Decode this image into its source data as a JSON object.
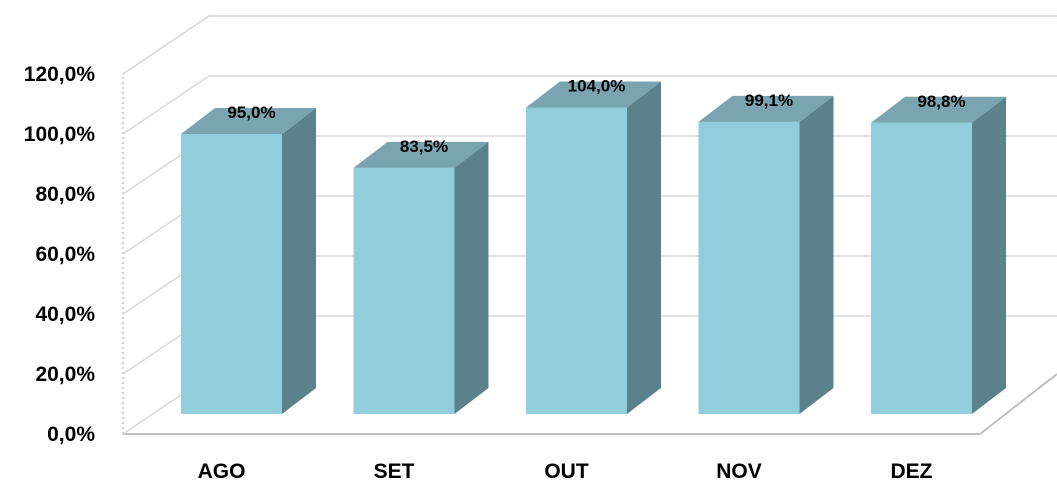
{
  "chart_data": {
    "type": "bar",
    "title": "",
    "xlabel": "",
    "ylabel": "",
    "categories": [
      "AGO",
      "SET",
      "OUT",
      "NOV",
      "DEZ"
    ],
    "values": [
      95.0,
      83.5,
      104.0,
      99.1,
      98.8
    ],
    "data_labels": [
      "95,0%",
      "83,5%",
      "104,0%",
      "99,1%",
      "98,8%"
    ],
    "ylim": [
      0,
      120
    ],
    "yticks": [
      0,
      20,
      40,
      60,
      80,
      100,
      120
    ],
    "ytick_labels": [
      "0,0%",
      "20,0%",
      "40,0%",
      "60,0%",
      "80,0%",
      "100,0%",
      "120,0%"
    ],
    "grid": true,
    "style": "3d-column",
    "colors": {
      "bar_front": "#92CDDC",
      "bar_side": "#5B828B",
      "bar_top": "#7AA4B0",
      "grid": "#D9D9D9",
      "wall_outline": "#BFBFBF"
    }
  }
}
